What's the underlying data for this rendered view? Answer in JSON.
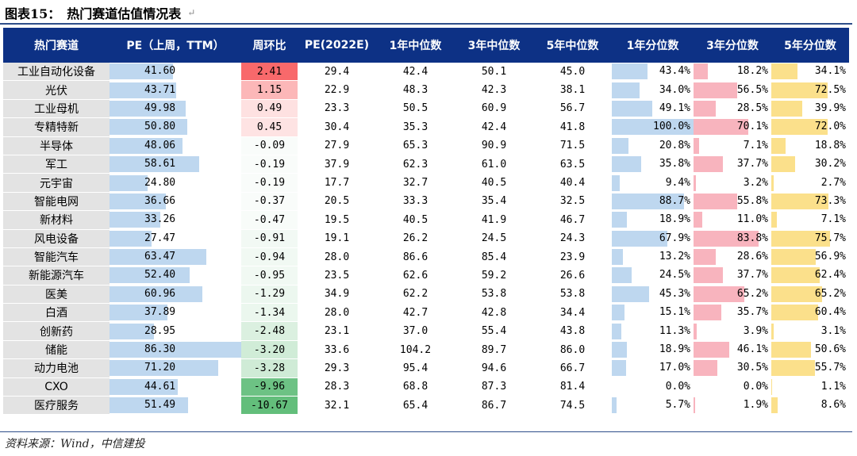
{
  "title": {
    "label": "图表15：",
    "text": "热门赛道估值情况表",
    "mark": "↵"
  },
  "headers": [
    "热门赛道",
    "PE（上周，TTM）",
    "周环比",
    "PE(2022E)",
    "1年中位数",
    "3年中位数",
    "5年中位数",
    "1年分位数",
    "3年分位数",
    "5年分位数"
  ],
  "colors": {
    "header_bg": "#0d3185",
    "pct1": "#bed7ef",
    "pct3": "#f8b4be",
    "pct5": "#fbe08b",
    "pe_bar": "#bed7ef",
    "chg_pos": "#f8696b",
    "chg_neg": "#63be7b"
  },
  "rows": [
    {
      "name": "工业自动化设备",
      "pe": "41.60",
      "chg": "2.41",
      "pe22": "29.4",
      "m1": "42.4",
      "m3": "50.1",
      "m5": "45.0",
      "p1": "43.4%",
      "p3": "18.2%",
      "p5": "34.1%"
    },
    {
      "name": "光伏",
      "pe": "43.71",
      "chg": "1.15",
      "pe22": "22.9",
      "m1": "48.3",
      "m3": "42.3",
      "m5": "38.1",
      "p1": "34.0%",
      "p3": "56.5%",
      "p5": "72.5%"
    },
    {
      "name": "工业母机",
      "pe": "49.98",
      "chg": "0.49",
      "pe22": "23.3",
      "m1": "50.5",
      "m3": "60.9",
      "m5": "56.7",
      "p1": "49.1%",
      "p3": "28.5%",
      "p5": "39.9%"
    },
    {
      "name": "专精特新",
      "pe": "50.80",
      "chg": "0.45",
      "pe22": "30.4",
      "m1": "35.3",
      "m3": "42.4",
      "m5": "41.8",
      "p1": "100.0%",
      "p3": "70.1%",
      "p5": "72.0%"
    },
    {
      "name": "半导体",
      "pe": "48.06",
      "chg": "-0.09",
      "pe22": "27.9",
      "m1": "65.3",
      "m3": "90.9",
      "m5": "71.5",
      "p1": "20.8%",
      "p3": "7.1%",
      "p5": "18.8%"
    },
    {
      "name": "军工",
      "pe": "58.61",
      "chg": "-0.19",
      "pe22": "37.9",
      "m1": "62.3",
      "m3": "61.0",
      "m5": "63.5",
      "p1": "35.8%",
      "p3": "37.7%",
      "p5": "30.2%"
    },
    {
      "name": "元宇宙",
      "pe": "24.80",
      "chg": "-0.19",
      "pe22": "17.7",
      "m1": "32.7",
      "m3": "40.5",
      "m5": "40.4",
      "p1": "9.4%",
      "p3": "3.2%",
      "p5": "2.7%"
    },
    {
      "name": "智能电网",
      "pe": "36.66",
      "chg": "-0.37",
      "pe22": "20.5",
      "m1": "33.3",
      "m3": "35.4",
      "m5": "32.5",
      "p1": "88.7%",
      "p3": "55.8%",
      "p5": "73.3%"
    },
    {
      "name": "新材料",
      "pe": "33.26",
      "chg": "-0.47",
      "pe22": "19.5",
      "m1": "40.5",
      "m3": "41.9",
      "m5": "46.7",
      "p1": "18.9%",
      "p3": "11.0%",
      "p5": "7.1%"
    },
    {
      "name": "风电设备",
      "pe": "27.47",
      "chg": "-0.91",
      "pe22": "19.1",
      "m1": "26.2",
      "m3": "24.5",
      "m5": "24.3",
      "p1": "67.9%",
      "p3": "83.8%",
      "p5": "75.7%"
    },
    {
      "name": "智能汽车",
      "pe": "63.47",
      "chg": "-0.94",
      "pe22": "28.0",
      "m1": "86.6",
      "m3": "85.4",
      "m5": "23.9",
      "p1": "13.2%",
      "p3": "28.6%",
      "p5": "56.9%"
    },
    {
      "name": "新能源汽车",
      "pe": "52.40",
      "chg": "-0.95",
      "pe22": "23.5",
      "m1": "62.6",
      "m3": "59.2",
      "m5": "26.6",
      "p1": "24.5%",
      "p3": "37.7%",
      "p5": "62.4%"
    },
    {
      "name": "医美",
      "pe": "60.96",
      "chg": "-1.29",
      "pe22": "34.9",
      "m1": "62.2",
      "m3": "53.8",
      "m5": "53.8",
      "p1": "45.3%",
      "p3": "65.2%",
      "p5": "65.2%"
    },
    {
      "name": "白酒",
      "pe": "37.89",
      "chg": "-1.34",
      "pe22": "28.0",
      "m1": "42.7",
      "m3": "42.8",
      "m5": "34.4",
      "p1": "15.1%",
      "p3": "35.7%",
      "p5": "60.4%"
    },
    {
      "name": "创新药",
      "pe": "28.95",
      "chg": "-2.48",
      "pe22": "23.1",
      "m1": "37.0",
      "m3": "55.4",
      "m5": "43.8",
      "p1": "11.3%",
      "p3": "3.9%",
      "p5": "3.1%"
    },
    {
      "name": "储能",
      "pe": "86.30",
      "chg": "-3.20",
      "pe22": "33.6",
      "m1": "104.2",
      "m3": "89.7",
      "m5": "86.0",
      "p1": "18.9%",
      "p3": "46.1%",
      "p5": "50.6%"
    },
    {
      "name": "动力电池",
      "pe": "71.20",
      "chg": "-3.28",
      "pe22": "29.3",
      "m1": "95.4",
      "m3": "94.6",
      "m5": "66.7",
      "p1": "17.0%",
      "p3": "30.5%",
      "p5": "55.7%"
    },
    {
      "name": "CXO",
      "pe": "44.61",
      "chg": "-9.96",
      "pe22": "28.3",
      "m1": "68.8",
      "m3": "87.3",
      "m5": "81.4",
      "p1": "0.0%",
      "p3": "0.0%",
      "p5": "1.1%"
    },
    {
      "name": "医疗服务",
      "pe": "51.49",
      "chg": "-10.67",
      "pe22": "32.1",
      "m1": "65.4",
      "m3": "86.7",
      "m5": "74.5",
      "p1": "5.7%",
      "p3": "1.9%",
      "p5": "8.6%"
    }
  ],
  "source": "资料来源：Wind，中信建投"
}
